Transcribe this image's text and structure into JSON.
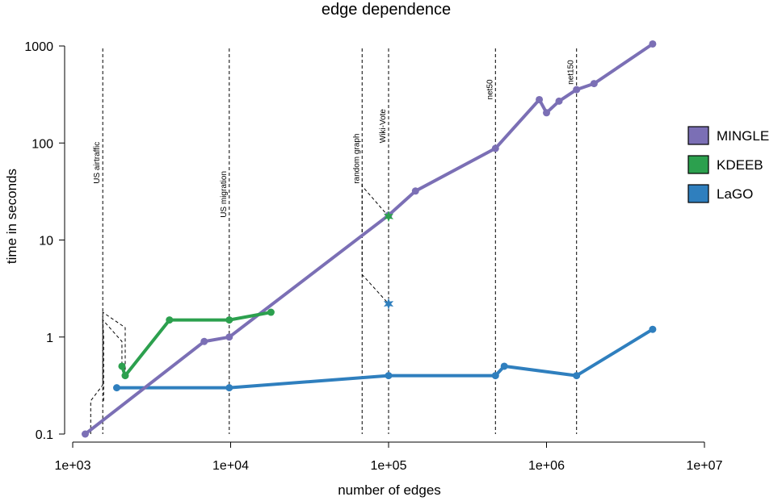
{
  "chart_data": {
    "type": "line",
    "title": "edge dependence",
    "xlabel": "number of edges",
    "ylabel": "time in seconds",
    "x_scale": "log",
    "y_scale": "log",
    "xlim": [
      1000,
      10000000
    ],
    "ylim": [
      0.1,
      1000
    ],
    "x_ticks": [
      1000,
      10000,
      100000,
      1000000,
      10000000
    ],
    "x_tick_labels": [
      "1e+03",
      "1e+04",
      "1e+05",
      "1e+06",
      "1e+07"
    ],
    "y_ticks": [
      0.1,
      1,
      10,
      100,
      1000
    ],
    "y_tick_labels": [
      "0.1",
      "1",
      "10",
      "100",
      "1000"
    ],
    "grid": false,
    "legend_position": "right",
    "series": [
      {
        "name": "MINGLE",
        "color": "#7B6FB5",
        "x": [
          1200,
          6800,
          9800,
          100000,
          148000,
          475000,
          900000,
          1000000,
          1200000,
          1550000,
          2000000,
          4700000
        ],
        "y": [
          0.1,
          0.9,
          1.0,
          18,
          32,
          88,
          280,
          205,
          270,
          355,
          410,
          1050
        ]
      },
      {
        "name": "KDEEB",
        "color": "#2CA04E",
        "x": [
          2050,
          2150,
          4100,
          9800,
          18000
        ],
        "y": [
          0.5,
          0.4,
          1.5,
          1.5,
          1.8
        ]
      },
      {
        "name": "LaGO",
        "color": "#2F7FBE",
        "x": [
          1900,
          9800,
          100000,
          475000,
          540000,
          1550000,
          4700000
        ],
        "y": [
          0.3,
          0.3,
          0.4,
          0.4,
          0.5,
          0.4,
          1.2
        ]
      }
    ],
    "star_markers": [
      {
        "series": "KDEEB",
        "x": 100000,
        "y": 17.5,
        "color": "#2CA04E"
      },
      {
        "series": "LaGO",
        "x": 100000,
        "y": 2.2,
        "color": "#2F7FBE"
      }
    ],
    "annotations": [
      {
        "text": "US airtraffic",
        "x": 1550,
        "label_y": 38
      },
      {
        "text": "US migration",
        "x": 9800,
        "label_y": 17
      },
      {
        "text": "random graph",
        "x": 68000,
        "label_y": 38
      },
      {
        "text": "Wiki-Vote",
        "x": 100000,
        "label_y": 100
      },
      {
        "text": "net50",
        "x": 475000,
        "label_y": 280
      },
      {
        "text": "net150",
        "x": 1550000,
        "label_y": 400
      }
    ]
  }
}
